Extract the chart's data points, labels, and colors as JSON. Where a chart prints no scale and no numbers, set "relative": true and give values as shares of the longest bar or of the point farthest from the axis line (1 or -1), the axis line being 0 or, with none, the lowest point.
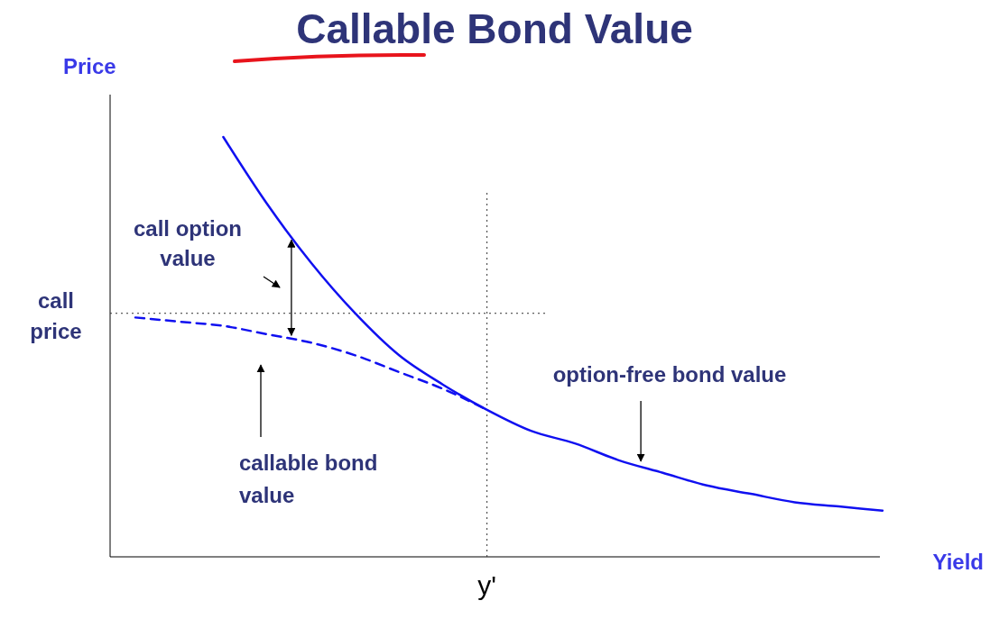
{
  "chart_data": {
    "type": "line",
    "title": "Callable Bond Value",
    "ylabel": "Price",
    "xlabel": "Yield",
    "relative": true,
    "marker": "none",
    "categories": [
      null,
      null,
      null,
      null,
      null,
      null,
      null,
      null,
      null,
      null,
      null,
      null,
      null,
      null,
      null,
      null,
      null,
      null
    ],
    "series": [
      {
        "name": "option-free bond value",
        "color": "#1010f0",
        "line_style": "solid",
        "values": [
          null,
          null,
          1,
          0.84,
          0.7,
          0.58,
          0.48,
          0.41,
          0.35,
          0.3,
          0.27,
          0.23,
          0.2,
          0.17,
          0.15,
          0.13,
          0.12,
          0.11
        ]
      },
      {
        "name": "callable bond value",
        "color": "#1010f0",
        "line_style": "dashed",
        "values": [
          0.57,
          0.56,
          0.55,
          0.53,
          0.51,
          0.48,
          0.44,
          0.4,
          0.35,
          null,
          null,
          null,
          null,
          null,
          null,
          null,
          null,
          null
        ]
      }
    ],
    "ref_lines": [
      {
        "axis": "y",
        "value": 0.58,
        "label": "call price",
        "line_style": "dotted",
        "color": "#333333"
      },
      {
        "axis": "x",
        "value": "y'",
        "line_style": "dotted",
        "color": "#333333"
      }
    ],
    "annotations": [
      "call option value"
    ]
  }
}
